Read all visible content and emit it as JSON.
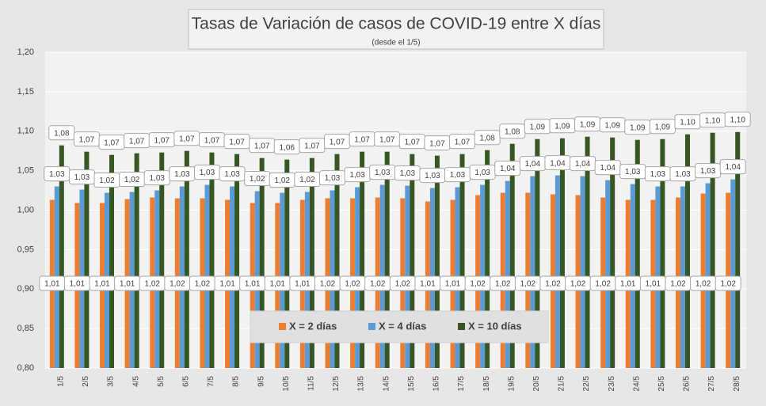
{
  "chart_data": {
    "type": "bar",
    "title": "Tasas de Variación de casos de COVID-19 entre X días",
    "subtitle": "(desde el 1/5)",
    "categories": [
      "1/5",
      "2/5",
      "3/5",
      "4/5",
      "5/5",
      "6/5",
      "7/5",
      "8/5",
      "9/5",
      "10/5",
      "11/5",
      "12/5",
      "13/5",
      "14/5",
      "15/5",
      "16/5",
      "17/5",
      "18/5",
      "19/5",
      "20/5",
      "21/5",
      "22/5",
      "23/5",
      "24/5",
      "25/5",
      "26/5",
      "27/5",
      "28/5"
    ],
    "series": [
      {
        "name": "X = 2 días",
        "color": "#ed7d31",
        "values": [
          1.013,
          1.009,
          1.009,
          1.014,
          1.016,
          1.015,
          1.015,
          1.013,
          1.009,
          1.009,
          1.013,
          1.015,
          1.015,
          1.016,
          1.015,
          1.011,
          1.013,
          1.019,
          1.022,
          1.022,
          1.02,
          1.019,
          1.016,
          1.013,
          1.013,
          1.016,
          1.021,
          1.022
        ],
        "value_labels": [
          "1,01",
          "1,01",
          "1,01",
          "1,01",
          "1,02",
          "1,02",
          "1,02",
          "1,01",
          "1,01",
          "1,01",
          "1,01",
          "1,02",
          "1,02",
          "1,02",
          "1,02",
          "1,01",
          "1,01",
          "1,02",
          "1,02",
          "1,02",
          "1,02",
          "1,02",
          "1,02",
          "1,01",
          "1,01",
          "1,02",
          "1,02",
          "1,02"
        ]
      },
      {
        "name": "X = 4 días",
        "color": "#5b9bd5",
        "values": [
          1.03,
          1.026,
          1.022,
          1.023,
          1.025,
          1.03,
          1.032,
          1.03,
          1.024,
          1.022,
          1.023,
          1.025,
          1.029,
          1.032,
          1.031,
          1.028,
          1.029,
          1.032,
          1.037,
          1.043,
          1.044,
          1.043,
          1.038,
          1.033,
          1.03,
          1.03,
          1.034,
          1.039
        ],
        "value_labels": [
          "1,03",
          "1,03",
          "1,02",
          "1,02",
          "1,03",
          "1,03",
          "1,03",
          "1,03",
          "1,02",
          "1,02",
          "1,02",
          "1,03",
          "1,03",
          "1,03",
          "1,03",
          "1,03",
          "1,03",
          "1,03",
          "1,04",
          "1,04",
          "1,04",
          "1,04",
          "1,04",
          "1,03",
          "1,03",
          "1,03",
          "1,03",
          "1,04"
        ]
      },
      {
        "name": "X = 10 días",
        "color": "#375623",
        "values": [
          1.082,
          1.074,
          1.07,
          1.072,
          1.073,
          1.075,
          1.073,
          1.071,
          1.066,
          1.064,
          1.066,
          1.071,
          1.074,
          1.074,
          1.071,
          1.069,
          1.071,
          1.076,
          1.084,
          1.09,
          1.091,
          1.093,
          1.092,
          1.089,
          1.09,
          1.096,
          1.098,
          1.099
        ],
        "value_labels": [
          "1,08",
          "1,07",
          "1,07",
          "1,07",
          "1,07",
          "1,07",
          "1,07",
          "1,07",
          "1,07",
          "1,06",
          "1,07",
          "1,07",
          "1,07",
          "1,07",
          "1,07",
          "1,07",
          "1,07",
          "1,08",
          "1,08",
          "1,09",
          "1,09",
          "1,09",
          "1,09",
          "1,09",
          "1,09",
          "1,10",
          "1,10",
          "1,10"
        ]
      }
    ],
    "ylim": [
      0.8,
      1.2
    ],
    "yticks": [
      {
        "value": 0.8,
        "label": "0,80"
      },
      {
        "value": 0.85,
        "label": "0,85"
      },
      {
        "value": 0.9,
        "label": "0,90"
      },
      {
        "value": 0.95,
        "label": "0,95"
      },
      {
        "value": 1.0,
        "label": "1,00"
      },
      {
        "value": 1.05,
        "label": "1,05"
      },
      {
        "value": 1.1,
        "label": "1,10"
      },
      {
        "value": 1.15,
        "label": "1,15"
      },
      {
        "value": 1.2,
        "label": "1,20"
      }
    ],
    "grid": true,
    "legend": "bottom"
  }
}
